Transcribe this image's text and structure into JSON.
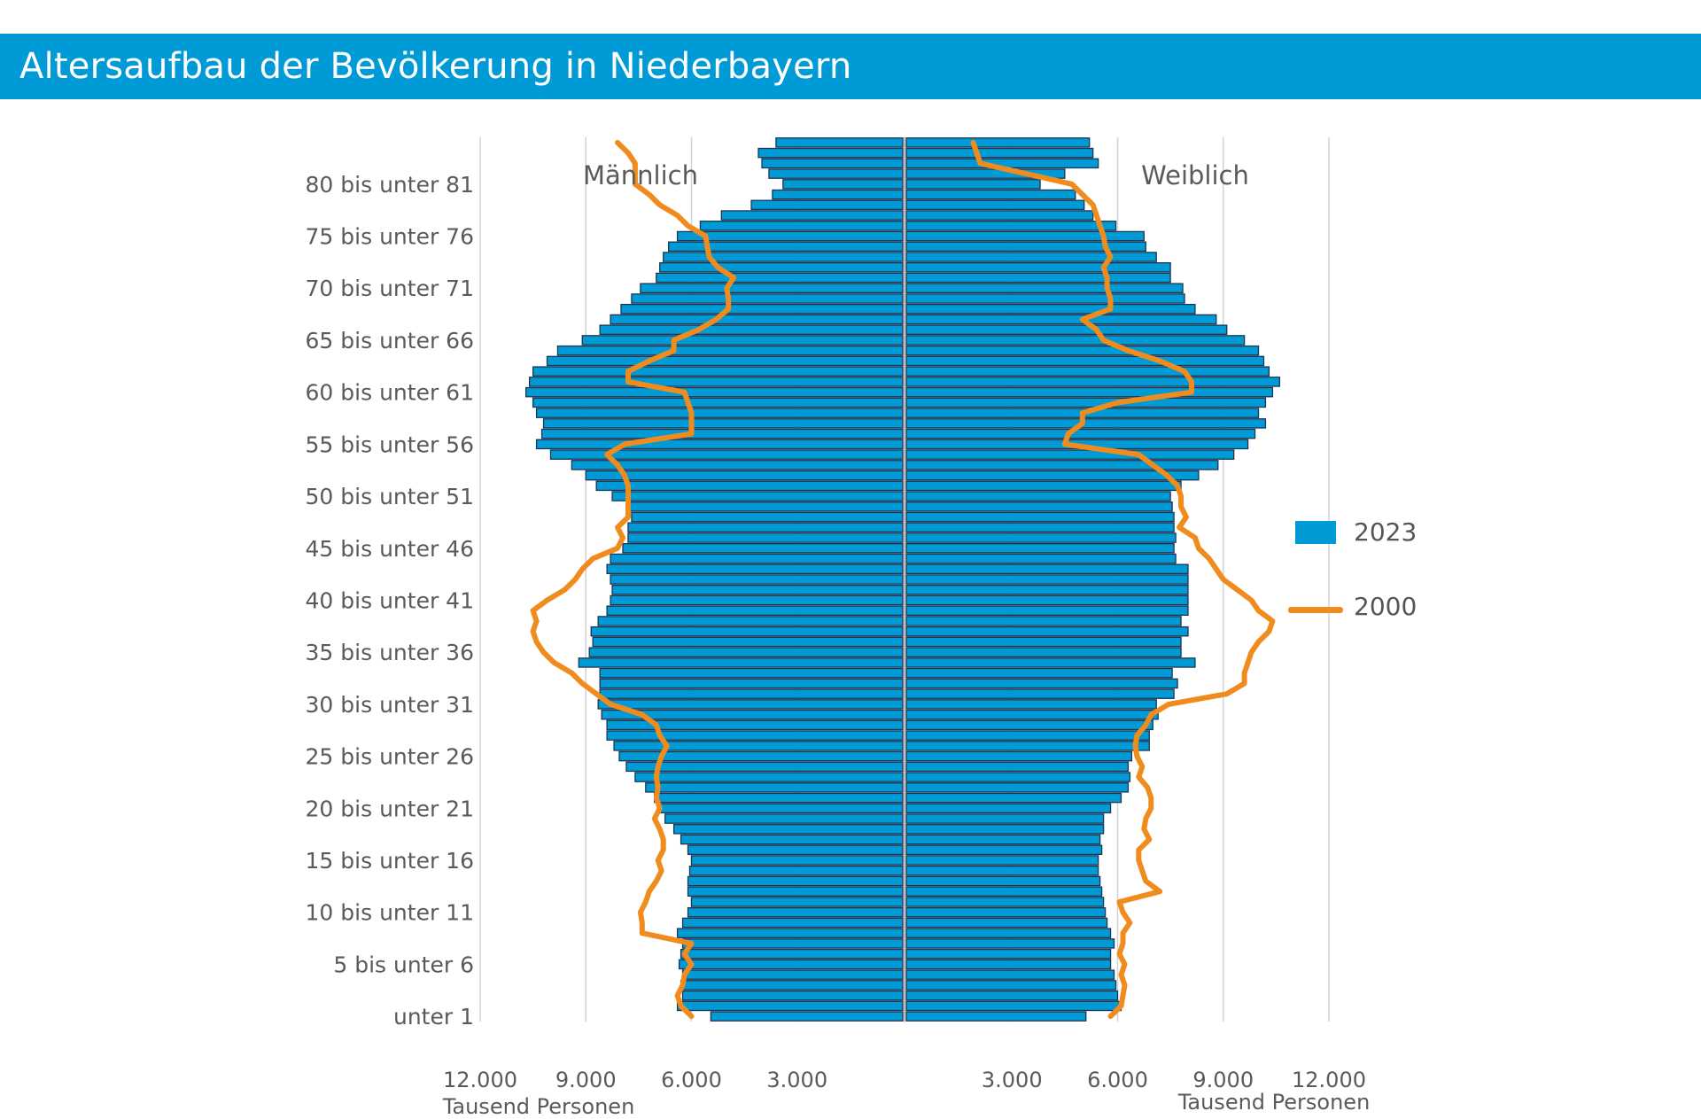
{
  "title": "Altersaufbau der Bevölkerung in Niederbayern",
  "colors": {
    "bar": "#009bd6",
    "bar_stroke": "#1c3552",
    "line": "#f08c1e",
    "grid": "#d3d3d3",
    "center": "#bfbfbf"
  },
  "chart_data": {
    "type": "bar",
    "orientation": "horizontal",
    "subtype": "population-pyramid",
    "title": "Altersaufbau der Bevölkerung in Niederbayern",
    "side_labels": [
      "Männlich",
      "Weiblich"
    ],
    "xlabel": "Tausend Personen",
    "x_ticks_left": [
      "12.000",
      "9.000",
      "6.000",
      "3.000"
    ],
    "x_ticks_right": [
      "3.000",
      "6.000",
      "9.000",
      "12.000"
    ],
    "xlim": [
      0,
      12000
    ],
    "y_tick_labels": [
      "unter 1",
      "5 bis unter 6",
      "10 bis unter 11",
      "15 bis unter 16",
      "20 bis unter 21",
      "25 bis unter 26",
      "30 bis unter 31",
      "35 bis unter 36",
      "40 bis unter 41",
      "45 bis unter 46",
      "50 bis unter 51",
      "55 bis unter 56",
      "60 bis unter 61",
      "65 bis unter 66",
      "70 bis unter 71",
      "75 bis unter 76",
      "80 bis unter 81"
    ],
    "y_tick_ages": [
      0,
      5,
      10,
      15,
      20,
      25,
      30,
      35,
      40,
      45,
      50,
      55,
      60,
      65,
      70,
      75,
      80
    ],
    "ages": [
      0,
      1,
      2,
      3,
      4,
      5,
      6,
      7,
      8,
      9,
      10,
      11,
      12,
      13,
      14,
      15,
      16,
      17,
      18,
      19,
      20,
      21,
      22,
      23,
      24,
      25,
      26,
      27,
      28,
      29,
      30,
      31,
      32,
      33,
      34,
      35,
      36,
      37,
      38,
      39,
      40,
      41,
      42,
      43,
      44,
      45,
      46,
      47,
      48,
      49,
      50,
      51,
      52,
      53,
      54,
      55,
      56,
      57,
      58,
      59,
      60,
      61,
      62,
      63,
      64,
      65,
      66,
      67,
      68,
      69,
      70,
      71,
      72,
      73,
      74,
      75,
      76,
      77,
      78,
      79,
      80,
      81,
      82,
      83,
      84
    ],
    "legend": [
      "2023",
      "2000"
    ],
    "legend_position": "right",
    "grid": true,
    "series": [
      {
        "name": "2023",
        "kind": "bar",
        "male": [
          5450,
          6400,
          6250,
          6300,
          6250,
          6350,
          6300,
          6250,
          6400,
          6250,
          6100,
          6000,
          6100,
          6100,
          6050,
          6000,
          6100,
          6300,
          6500,
          6750,
          6900,
          7050,
          7300,
          7600,
          7850,
          8050,
          8200,
          8400,
          8400,
          8550,
          8650,
          8600,
          8600,
          8600,
          9200,
          8900,
          8800,
          8850,
          8650,
          8400,
          8300,
          8250,
          8300,
          8400,
          8300,
          7950,
          7800,
          7800,
          7700,
          7800,
          8250,
          8700,
          9000,
          9400,
          10000,
          10400,
          10250,
          10200,
          10400,
          10500,
          10700,
          10600,
          10500,
          10100,
          9800,
          9100,
          8600,
          8300,
          8000,
          7700,
          7450,
          7000,
          6900,
          6800,
          6650,
          6400,
          5750,
          5150,
          4300,
          3700,
          3400,
          3800,
          4000,
          4100,
          3600
        ],
        "female": [
          5100,
          6100,
          6000,
          5950,
          5900,
          5800,
          5800,
          5900,
          5800,
          5700,
          5650,
          5600,
          5550,
          5500,
          5450,
          5450,
          5550,
          5500,
          5600,
          5600,
          5800,
          6100,
          6300,
          6350,
          6300,
          6400,
          6900,
          6900,
          7000,
          7150,
          7100,
          7600,
          7700,
          7550,
          8200,
          7800,
          7800,
          8000,
          7800,
          8000,
          8000,
          8000,
          8000,
          8000,
          7650,
          7600,
          7650,
          7600,
          7600,
          7550,
          7500,
          7800,
          8300,
          8850,
          9300,
          9700,
          9900,
          10200,
          10000,
          10200,
          10400,
          10600,
          10300,
          10150,
          10000,
          9600,
          9100,
          8800,
          8200,
          7900,
          7850,
          7500,
          7500,
          7100,
          6800,
          6750,
          5950,
          5300,
          5050,
          4800,
          3800,
          4500,
          5450,
          5300,
          5200
        ]
      },
      {
        "name": "2000",
        "kind": "line",
        "male": [
          6000,
          6300,
          6400,
          6250,
          6200,
          6000,
          6200,
          6000,
          7400,
          7400,
          7450,
          7300,
          7200,
          7000,
          6850,
          6950,
          6800,
          6800,
          6900,
          7050,
          6900,
          7000,
          6950,
          7000,
          6950,
          6850,
          6700,
          6900,
          7000,
          7400,
          8300,
          8700,
          9100,
          9400,
          9900,
          10200,
          10400,
          10500,
          10400,
          10500,
          10100,
          9600,
          9300,
          9100,
          8800,
          8100,
          7950,
          8100,
          7800,
          7800,
          7800,
          7800,
          7900,
          8100,
          8400,
          7900,
          6000,
          6000,
          6000,
          6100,
          6200,
          7800,
          7800,
          7200,
          6500,
          6500,
          5800,
          5300,
          4950,
          4950,
          5000,
          4800,
          5250,
          5500,
          5550,
          5600,
          6100,
          6400,
          6900,
          7200,
          7600,
          7600,
          7600,
          7800,
          8100
        ],
        "female": [
          5800,
          6100,
          6150,
          6200,
          6100,
          6200,
          6050,
          6150,
          6150,
          6350,
          6150,
          6050,
          7200,
          6800,
          6700,
          6600,
          6600,
          6900,
          6750,
          6800,
          6950,
          6950,
          6850,
          6600,
          6700,
          6550,
          6500,
          6550,
          6800,
          6950,
          7450,
          9100,
          9600,
          9600,
          9700,
          9800,
          10000,
          10300,
          10400,
          10000,
          9800,
          9400,
          9000,
          8800,
          8600,
          8300,
          8200,
          7750,
          7950,
          7800,
          7800,
          7700,
          7400,
          7000,
          6600,
          4500,
          4600,
          5000,
          5000,
          6000,
          8100,
          8100,
          7900,
          7200,
          6300,
          5600,
          5400,
          5000,
          5800,
          5800,
          5700,
          5700,
          5600,
          5800,
          5650,
          5600,
          5500,
          5400,
          5300,
          5000,
          4700,
          3400,
          2100,
          2000,
          1900
        ]
      }
    ]
  }
}
